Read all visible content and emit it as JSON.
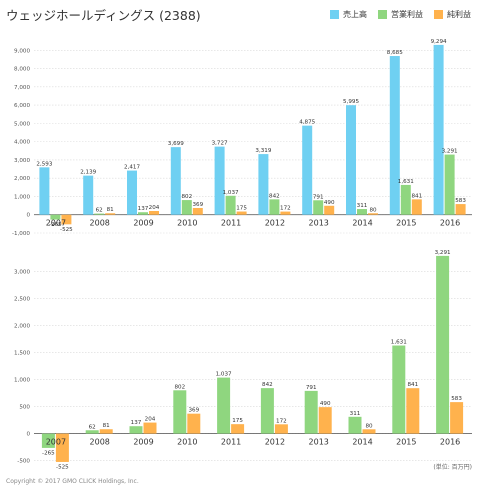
{
  "page": {
    "title": "ウェッジホールディングス (2388)",
    "unit_note": "(単位: 百万円)",
    "copyright": "Copyright © 2017 GMO CLICK Holdings, Inc."
  },
  "colors": {
    "sales": "#6fd0f2",
    "operating": "#8fd67f",
    "net": "#ffb24d",
    "grid": "#d9d9d9",
    "axis": "#666666"
  },
  "legend": [
    {
      "label": "売上高",
      "color": "#6fd0f2"
    },
    {
      "label": "営業利益",
      "color": "#8fd67f"
    },
    {
      "label": "純利益",
      "color": "#ffb24d"
    }
  ],
  "chart_data": [
    {
      "type": "bar",
      "categories": [
        "2007",
        "2008",
        "2009",
        "2010",
        "2011",
        "2012",
        "2013",
        "2014",
        "2015",
        "2016"
      ],
      "series": [
        {
          "name": "売上高",
          "color": "#6fd0f2",
          "values": [
            2593,
            2139,
            2417,
            3699,
            3727,
            3319,
            4875,
            5995,
            8685,
            9294
          ],
          "labels": [
            "2,593",
            "2,139",
            "2,417",
            "3,699",
            "3,727",
            "3,319",
            "4,875",
            "5,995",
            "8,685",
            "9,294"
          ]
        },
        {
          "name": "営業利益",
          "color": "#8fd67f",
          "values": [
            -265,
            62,
            137,
            802,
            1037,
            842,
            791,
            311,
            1631,
            3291
          ],
          "labels": [
            "-265",
            "62",
            "137",
            "802",
            "1,037",
            "842",
            "791",
            "311",
            "1,631",
            "3,291"
          ]
        },
        {
          "name": "純利益",
          "color": "#ffb24d",
          "values": [
            -525,
            81,
            204,
            369,
            175,
            172,
            490,
            80,
            841,
            583
          ],
          "labels": [
            "-525",
            "81",
            "204",
            "369",
            "175",
            "172",
            "490",
            "80",
            "841",
            "583"
          ]
        }
      ],
      "ylim": [
        -1000,
        10000
      ],
      "yticks": [
        -1000,
        0,
        1000,
        2000,
        3000,
        4000,
        5000,
        6000,
        7000,
        8000,
        9000
      ],
      "ytick_labels": [
        "-1,000",
        "0",
        "1,000",
        "2,000",
        "3,000",
        "4,000",
        "5,000",
        "6,000",
        "7,000",
        "8,000",
        "9,000"
      ],
      "grid": true,
      "legend_position": "top-right"
    },
    {
      "type": "bar",
      "categories": [
        "2007",
        "2008",
        "2009",
        "2010",
        "2011",
        "2012",
        "2013",
        "2014",
        "2015",
        "2016"
      ],
      "series": [
        {
          "name": "営業利益",
          "color": "#8fd67f",
          "values": [
            -265,
            62,
            137,
            802,
            1037,
            842,
            791,
            311,
            1631,
            3291
          ],
          "labels": [
            "-265",
            "62",
            "137",
            "802",
            "1,037",
            "842",
            "791",
            "311",
            "1,631",
            "3,291"
          ]
        },
        {
          "name": "純利益",
          "color": "#ffb24d",
          "values": [
            -525,
            81,
            204,
            369,
            175,
            172,
            490,
            80,
            841,
            583
          ],
          "labels": [
            "-525",
            "81",
            "204",
            "369",
            "175",
            "172",
            "490",
            "80",
            "841",
            "583"
          ]
        }
      ],
      "ylim": [
        -600,
        3400
      ],
      "yticks": [
        -500,
        0,
        500,
        1000,
        1500,
        2000,
        2500,
        3000
      ],
      "ytick_labels": [
        "-500",
        "0",
        "500",
        "1,000",
        "1,500",
        "2,000",
        "2,500",
        "3,000"
      ],
      "grid": true
    }
  ]
}
